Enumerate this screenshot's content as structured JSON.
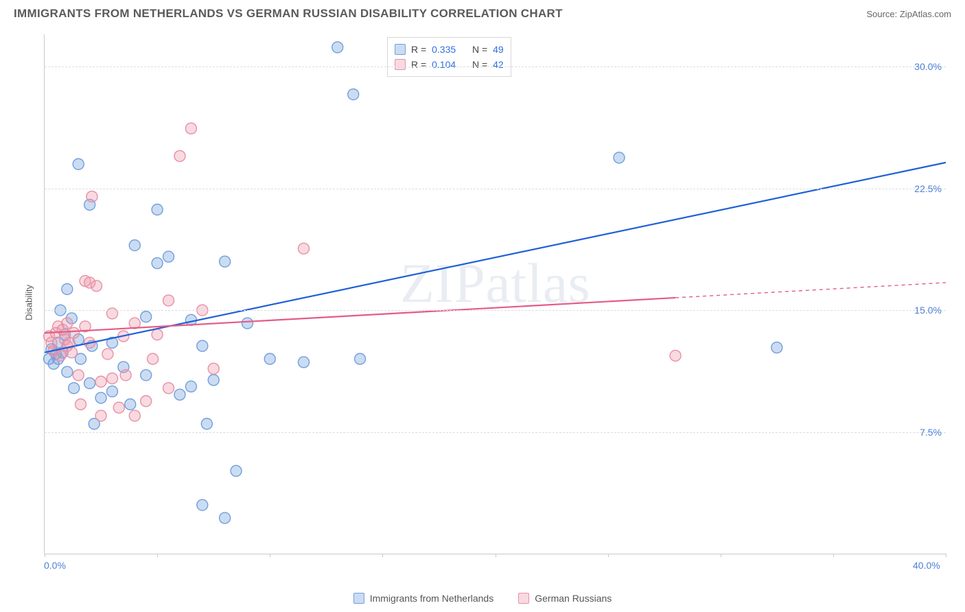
{
  "header": {
    "title": "IMMIGRANTS FROM NETHERLANDS VS GERMAN RUSSIAN DISABILITY CORRELATION CHART",
    "source": "Source: ZipAtlas.com"
  },
  "watermark": "ZIPatlas",
  "chart": {
    "type": "scatter",
    "ylabel": "Disability",
    "xlim": [
      0,
      40
    ],
    "ylim": [
      0,
      32
    ],
    "y_ticks": [
      7.5,
      15.0,
      22.5,
      30.0
    ],
    "y_tick_labels": [
      "7.5%",
      "15.0%",
      "22.5%",
      "30.0%"
    ],
    "x_tick_positions": [
      0,
      5,
      10,
      15,
      20,
      25,
      30,
      35,
      40
    ],
    "x_axis_start_label": "0.0%",
    "x_axis_end_label": "40.0%",
    "background_color": "#ffffff",
    "grid_color": "#dcdcdc",
    "axis_color": "#c9c9c9",
    "tick_label_color": "#4b7fd6",
    "marker_radius": 8,
    "marker_stroke_width": 1.4,
    "trend_line_width": 2.2,
    "series": [
      {
        "name": "Immigrants from Netherlands",
        "fill": "rgba(118, 162, 222, 0.38)",
        "stroke": "#6f9fde",
        "trend_color": "#1f5fd8",
        "r_label": "R =",
        "r_value": "0.335",
        "n_label": "N =",
        "n_value": "49",
        "trend": {
          "x1": 0,
          "y1": 12.4,
          "x2": 40,
          "y2": 24.1
        },
        "trend_dashed_from_x": null,
        "points": [
          [
            0.2,
            12.0
          ],
          [
            0.3,
            12.6
          ],
          [
            0.4,
            11.7
          ],
          [
            0.5,
            12.3
          ],
          [
            0.6,
            13.0
          ],
          [
            0.6,
            12.0
          ],
          [
            0.7,
            15.0
          ],
          [
            0.8,
            12.4
          ],
          [
            1.0,
            11.2
          ],
          [
            1.0,
            16.3
          ],
          [
            1.2,
            14.5
          ],
          [
            1.3,
            10.2
          ],
          [
            1.5,
            24.0
          ],
          [
            1.5,
            13.2
          ],
          [
            1.6,
            12.0
          ],
          [
            2.0,
            10.5
          ],
          [
            2.0,
            21.5
          ],
          [
            2.1,
            12.8
          ],
          [
            2.2,
            8.0
          ],
          [
            2.5,
            9.6
          ],
          [
            3.0,
            13.0
          ],
          [
            3.0,
            10.0
          ],
          [
            3.5,
            11.5
          ],
          [
            3.8,
            9.2
          ],
          [
            4.0,
            19.0
          ],
          [
            4.5,
            14.6
          ],
          [
            4.5,
            11.0
          ],
          [
            5.0,
            21.2
          ],
          [
            5.0,
            17.9
          ],
          [
            5.5,
            18.3
          ],
          [
            6.0,
            9.8
          ],
          [
            6.5,
            10.3
          ],
          [
            6.5,
            14.4
          ],
          [
            7.0,
            12.8
          ],
          [
            7.0,
            3.0
          ],
          [
            7.2,
            8.0
          ],
          [
            7.5,
            10.7
          ],
          [
            8.0,
            2.2
          ],
          [
            8.0,
            18.0
          ],
          [
            8.5,
            5.1
          ],
          [
            9.0,
            14.2
          ],
          [
            10.0,
            12.0
          ],
          [
            11.5,
            11.8
          ],
          [
            13.0,
            31.2
          ],
          [
            13.7,
            28.3
          ],
          [
            14.0,
            12.0
          ],
          [
            25.5,
            24.4
          ],
          [
            32.5,
            12.7
          ],
          [
            0.9,
            13.5
          ]
        ]
      },
      {
        "name": "German Russians",
        "fill": "rgba(236, 150, 170, 0.35)",
        "stroke": "#e98fa5",
        "trend_color": "#e55b84",
        "r_label": "R =",
        "r_value": "0.104",
        "n_label": "N =",
        "n_value": "42",
        "trend": {
          "x1": 0,
          "y1": 13.6,
          "x2": 40,
          "y2": 16.7
        },
        "trend_dashed_from_x": 28,
        "points": [
          [
            0.2,
            13.4
          ],
          [
            0.3,
            13.0
          ],
          [
            0.4,
            12.5
          ],
          [
            0.5,
            13.6
          ],
          [
            0.6,
            14.0
          ],
          [
            0.7,
            12.2
          ],
          [
            0.8,
            13.8
          ],
          [
            0.9,
            13.2
          ],
          [
            1.0,
            14.2
          ],
          [
            1.0,
            12.8
          ],
          [
            1.1,
            13.0
          ],
          [
            1.2,
            12.4
          ],
          [
            1.3,
            13.6
          ],
          [
            1.5,
            11.0
          ],
          [
            1.6,
            9.2
          ],
          [
            1.8,
            16.8
          ],
          [
            1.8,
            14.0
          ],
          [
            2.0,
            16.7
          ],
          [
            2.0,
            13.0
          ],
          [
            2.1,
            22.0
          ],
          [
            2.3,
            16.5
          ],
          [
            2.5,
            10.6
          ],
          [
            2.5,
            8.5
          ],
          [
            2.8,
            12.3
          ],
          [
            3.0,
            14.8
          ],
          [
            3.0,
            10.8
          ],
          [
            3.3,
            9.0
          ],
          [
            3.5,
            13.4
          ],
          [
            3.6,
            11.0
          ],
          [
            4.0,
            14.2
          ],
          [
            4.0,
            8.5
          ],
          [
            4.5,
            9.4
          ],
          [
            5.0,
            13.5
          ],
          [
            5.5,
            15.6
          ],
          [
            5.5,
            10.2
          ],
          [
            6.0,
            24.5
          ],
          [
            6.5,
            26.2
          ],
          [
            7.0,
            15.0
          ],
          [
            7.5,
            11.4
          ],
          [
            11.5,
            18.8
          ],
          [
            28.0,
            12.2
          ],
          [
            4.8,
            12.0
          ]
        ]
      }
    ]
  },
  "legend_bottom": [
    {
      "label": "Immigrants from Netherlands",
      "series": 0
    },
    {
      "label": "German Russians",
      "series": 1
    }
  ]
}
